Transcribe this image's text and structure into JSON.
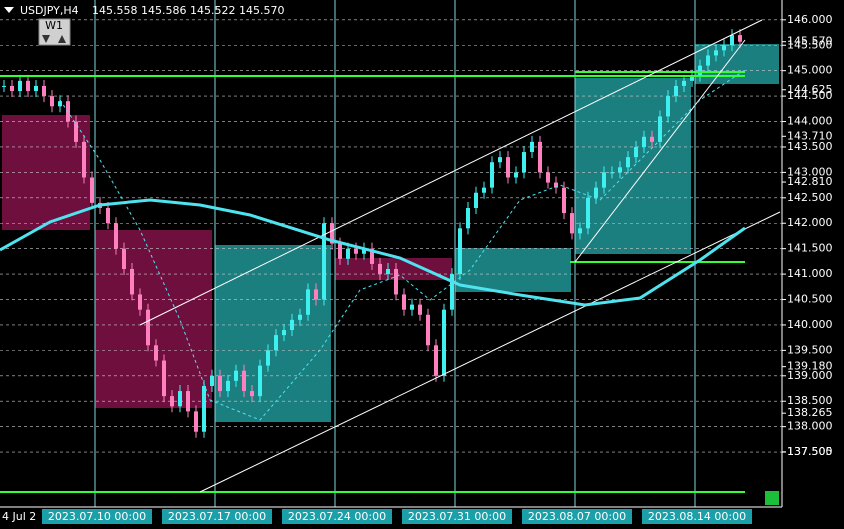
{
  "header": {
    "symbol": "USDJPY,H4",
    "ohlc": "145.558 145.586 145.522 145.570"
  },
  "button": "W1",
  "price_axis": {
    "ylim": [
      136.42,
      146.39
    ],
    "ticks": [
      {
        "value": 146,
        "label": "146.000"
      },
      {
        "value": 145.5,
        "label": "145.500"
      },
      {
        "value": 145,
        "label": "145.000"
      },
      {
        "value": 144.5,
        "label": "144.500"
      },
      {
        "value": 144,
        "label": "144.000"
      },
      {
        "value": 143.5,
        "label": "143.500"
      },
      {
        "value": 143,
        "label": "143.000"
      },
      {
        "value": 142.5,
        "label": "142.500"
      },
      {
        "value": 142,
        "label": "142.000"
      },
      {
        "value": 141.5,
        "label": "141.500"
      },
      {
        "value": 141,
        "label": "141.000"
      },
      {
        "value": 140.5,
        "label": "140.500"
      },
      {
        "value": 140,
        "label": "140.000"
      },
      {
        "value": 139.5,
        "label": "139.500"
      },
      {
        "value": 139,
        "label": "139.000"
      },
      {
        "value": 138.5,
        "label": "138.500"
      },
      {
        "value": 138,
        "label": "138.000"
      },
      {
        "value": 137.5,
        "label": "137.500"
      }
    ],
    "levels": [
      {
        "value": 145.57,
        "label": "145.570"
      },
      {
        "value": 144.625,
        "label": "144.625"
      },
      {
        "value": 143.71,
        "label": "143.710"
      },
      {
        "value": 142.81,
        "label": "142.810"
      },
      {
        "value": 139.18,
        "label": "139.180"
      },
      {
        "value": 138.265,
        "label": "138.265"
      },
      {
        "value": 137.505,
        "label": "137.505"
      }
    ]
  },
  "time_axis": {
    "start_fragment": "4 Jul 2",
    "labels": [
      "2023.07.10 00:00",
      "2023.07.17 00:00",
      "2023.07.24 00:00",
      "2023.07.31 00:00",
      "2023.08.07 00:00",
      "2023.08.14 00:00"
    ]
  },
  "candles": {
    "closes": [
      144.7,
      144.6,
      144.8,
      144.6,
      144.7,
      144.5,
      144.3,
      144.4,
      144.0,
      143.6,
      142.9,
      142.4,
      142.3,
      142.0,
      141.5,
      141.1,
      140.6,
      140.3,
      139.6,
      139.3,
      138.6,
      138.4,
      138.7,
      138.3,
      137.9,
      138.8,
      139.0,
      138.7,
      138.9,
      139.1,
      138.7,
      138.6,
      139.2,
      139.5,
      139.8,
      139.9,
      140.1,
      140.2,
      140.7,
      140.5,
      142.0,
      141.6,
      141.3,
      141.5,
      141.4,
      141.5,
      141.2,
      141.0,
      141.1,
      140.6,
      140.3,
      140.4,
      140.2,
      139.6,
      139.0,
      140.3,
      141.0,
      141.9,
      142.3,
      142.6,
      142.7,
      143.2,
      143.3,
      142.9,
      143.0,
      143.4,
      143.6,
      143.0,
      142.8,
      142.7,
      142.2,
      141.8,
      141.9,
      142.5,
      142.7,
      143.0,
      143.0,
      143.1,
      143.3,
      143.5,
      143.7,
      143.6,
      144.1,
      144.5,
      144.7,
      144.8,
      144.9,
      145.1,
      145.3,
      145.4,
      145.5,
      145.7,
      145.57
    ]
  }
}
